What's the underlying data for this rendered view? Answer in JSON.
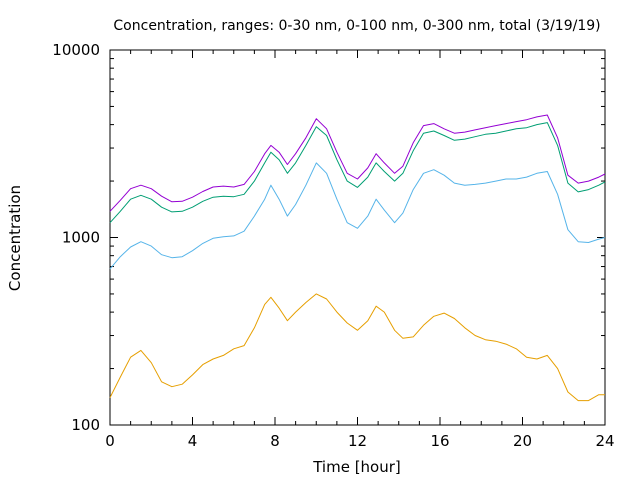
{
  "chart_data": {
    "type": "line",
    "title": "Concentration, ranges: 0-30 nm, 0-100 nm, 0-300 nm, total (3/19/19)",
    "xlabel": "Time [hour]",
    "ylabel": "Concentration",
    "xlim": [
      0,
      24
    ],
    "ylim": [
      100,
      10000
    ],
    "yscale": "log",
    "grid": false,
    "x_ticks": [
      0,
      4,
      8,
      12,
      16,
      20,
      24
    ],
    "y_ticks": [
      100,
      1000,
      10000
    ],
    "x_tick_labels": [
      "0",
      "4",
      "8",
      "12",
      "16",
      "20",
      "24"
    ],
    "y_tick_labels": [
      "100",
      "1000",
      "10000"
    ],
    "series": [
      {
        "color": "#e69f00",
        "x": [
          0,
          0.5,
          1,
          1.5,
          2,
          2.5,
          3,
          3.5,
          4,
          4.5,
          5,
          5.5,
          6,
          6.5,
          7,
          7.5,
          7.8,
          8.2,
          8.6,
          9,
          9.5,
          10,
          10.5,
          11,
          11.5,
          12,
          12.5,
          12.9,
          13.3,
          13.8,
          14.2,
          14.7,
          15.2,
          15.7,
          16.2,
          16.7,
          17.2,
          17.7,
          18.2,
          18.7,
          19.2,
          19.7,
          20.2,
          20.7,
          21.2,
          21.7,
          22.2,
          22.7,
          23.2,
          23.7,
          24
        ],
        "y": [
          140,
          180,
          230,
          250,
          215,
          170,
          160,
          165,
          185,
          210,
          225,
          235,
          255,
          265,
          330,
          440,
          480,
          420,
          360,
          400,
          450,
          500,
          470,
          400,
          350,
          320,
          360,
          430,
          400,
          320,
          290,
          295,
          340,
          380,
          395,
          370,
          330,
          300,
          285,
          280,
          270,
          255,
          230,
          225,
          235,
          200,
          150,
          135,
          135,
          145,
          145
        ]
      },
      {
        "color": "#56b4e9",
        "x": [
          0,
          0.5,
          1,
          1.5,
          2,
          2.5,
          3,
          3.5,
          4,
          4.5,
          5,
          5.5,
          6,
          6.5,
          7,
          7.5,
          7.8,
          8.2,
          8.6,
          9,
          9.5,
          10,
          10.5,
          11,
          11.5,
          12,
          12.5,
          12.9,
          13.3,
          13.8,
          14.2,
          14.7,
          15.2,
          15.7,
          16.2,
          16.7,
          17.2,
          17.7,
          18.2,
          18.7,
          19.2,
          19.7,
          20.2,
          20.7,
          21.2,
          21.7,
          22.2,
          22.7,
          23.2,
          23.7,
          24
        ],
        "y": [
          680,
          790,
          890,
          950,
          900,
          810,
          780,
          790,
          850,
          930,
          990,
          1010,
          1020,
          1080,
          1300,
          1600,
          1900,
          1600,
          1300,
          1500,
          1900,
          2500,
          2200,
          1600,
          1200,
          1120,
          1300,
          1600,
          1400,
          1200,
          1350,
          1800,
          2200,
          2300,
          2150,
          1950,
          1900,
          1920,
          1950,
          2000,
          2050,
          2050,
          2100,
          2200,
          2250,
          1700,
          1100,
          950,
          940,
          980,
          1000
        ]
      },
      {
        "color": "#009e73",
        "x": [
          0,
          0.5,
          1,
          1.5,
          2,
          2.5,
          3,
          3.5,
          4,
          4.5,
          5,
          5.5,
          6,
          6.5,
          7,
          7.5,
          7.8,
          8.2,
          8.6,
          9,
          9.5,
          10,
          10.5,
          11,
          11.5,
          12,
          12.5,
          12.9,
          13.3,
          13.8,
          14.2,
          14.7,
          15.2,
          15.7,
          16.2,
          16.7,
          17.2,
          17.7,
          18.2,
          18.7,
          19.2,
          19.7,
          20.2,
          20.7,
          21.2,
          21.7,
          22.2,
          22.7,
          23.2,
          23.7,
          24
        ],
        "y": [
          1200,
          1380,
          1600,
          1680,
          1600,
          1450,
          1370,
          1380,
          1450,
          1560,
          1640,
          1660,
          1650,
          1700,
          2000,
          2500,
          2850,
          2600,
          2200,
          2500,
          3100,
          3900,
          3500,
          2600,
          2000,
          1850,
          2100,
          2500,
          2250,
          2000,
          2200,
          2900,
          3600,
          3700,
          3500,
          3300,
          3350,
          3450,
          3550,
          3600,
          3700,
          3800,
          3850,
          4000,
          4100,
          3100,
          1950,
          1750,
          1800,
          1900,
          1980
        ]
      },
      {
        "color": "#9400d3",
        "x": [
          0,
          0.5,
          1,
          1.5,
          2,
          2.5,
          3,
          3.5,
          4,
          4.5,
          5,
          5.5,
          6,
          6.5,
          7,
          7.5,
          7.8,
          8.2,
          8.6,
          9,
          9.5,
          10,
          10.5,
          11,
          11.5,
          12,
          12.5,
          12.9,
          13.3,
          13.8,
          14.2,
          14.7,
          15.2,
          15.7,
          16.2,
          16.7,
          17.2,
          17.7,
          18.2,
          18.7,
          19.2,
          19.7,
          20.2,
          20.7,
          21.2,
          21.7,
          22.2,
          22.7,
          23.2,
          23.7,
          24
        ],
        "y": [
          1380,
          1580,
          1820,
          1900,
          1820,
          1660,
          1550,
          1560,
          1640,
          1760,
          1860,
          1880,
          1860,
          1920,
          2250,
          2800,
          3100,
          2850,
          2450,
          2800,
          3400,
          4300,
          3800,
          2850,
          2200,
          2050,
          2350,
          2800,
          2500,
          2200,
          2400,
          3200,
          3950,
          4050,
          3800,
          3600,
          3650,
          3750,
          3850,
          3950,
          4050,
          4150,
          4250,
          4400,
          4500,
          3400,
          2150,
          1950,
          2000,
          2100,
          2180
        ]
      }
    ]
  }
}
